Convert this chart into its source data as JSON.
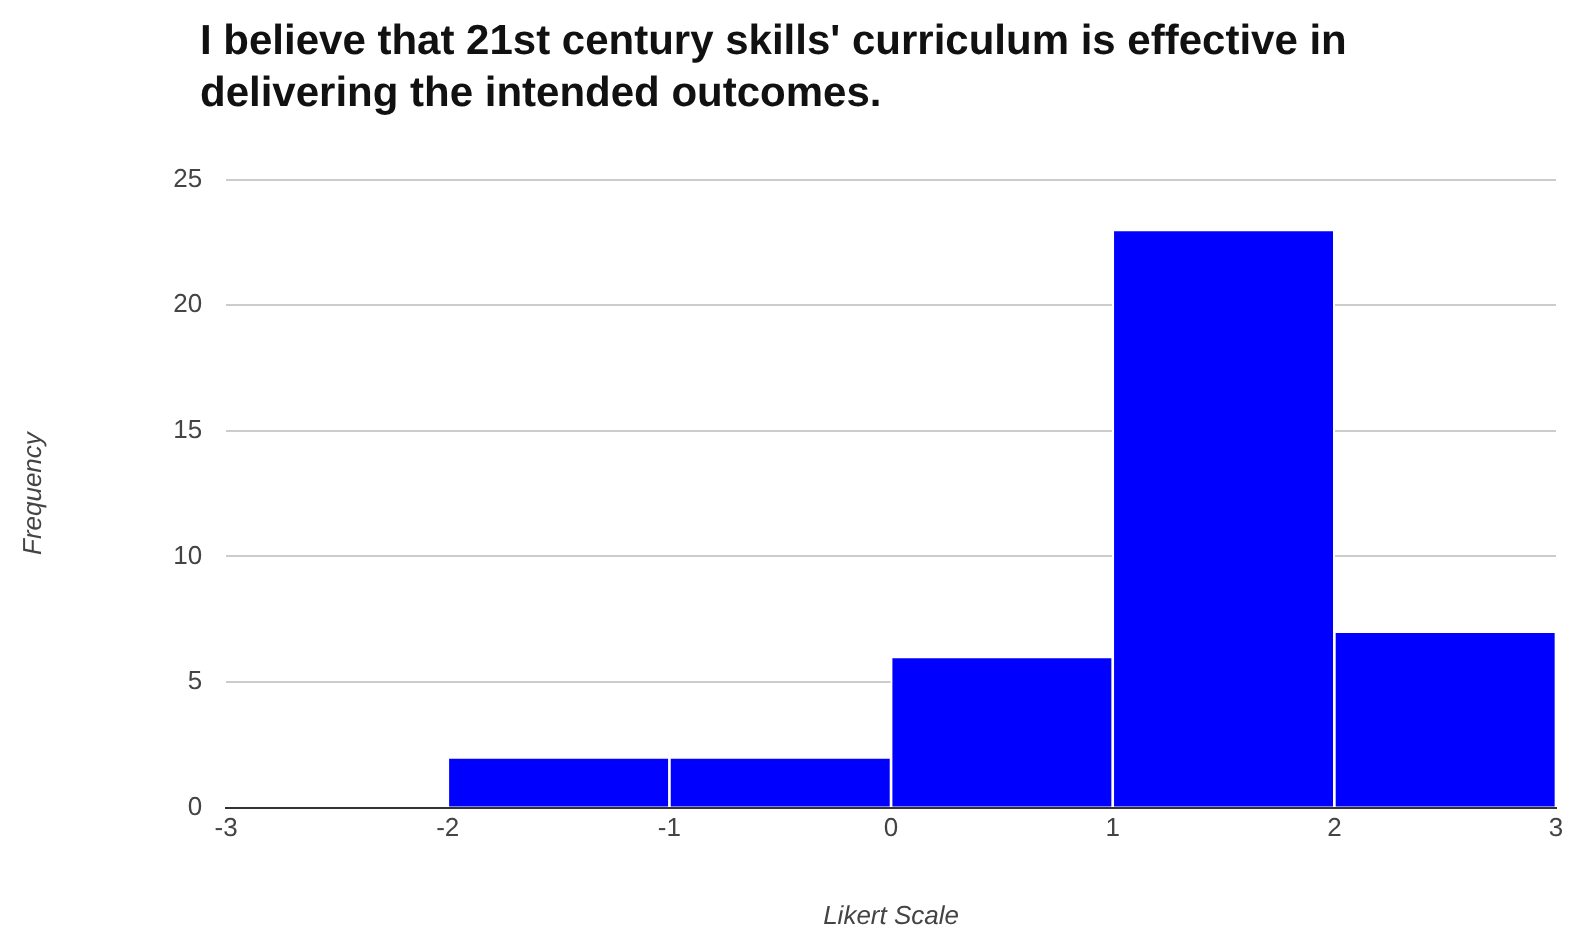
{
  "chart_data": {
    "type": "histogram",
    "title": "I believe that 21st century skills' curriculum is effective in delivering the intended outcomes.",
    "xlabel": "Likert Scale",
    "ylabel": "Frequency",
    "bins": [
      -3,
      -2,
      -1,
      0,
      1,
      2,
      3
    ],
    "values": [
      0,
      2,
      2,
      6,
      23,
      7
    ],
    "color": "#0000ff",
    "xlim": [
      -3,
      3
    ],
    "xticks": [
      -3,
      -2,
      -1,
      0,
      1,
      2,
      3
    ],
    "ylim": [
      0,
      25
    ],
    "yticks": [
      0,
      5,
      10,
      15,
      20,
      25
    ],
    "grid": "y",
    "legend": false
  }
}
